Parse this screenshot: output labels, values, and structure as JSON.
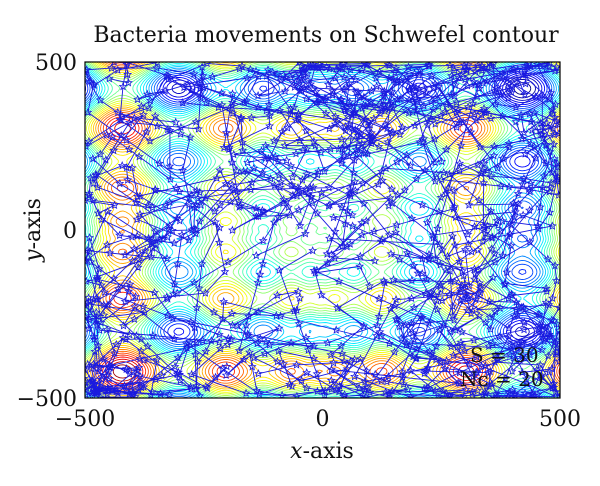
{
  "chart_data": {
    "type": "contour",
    "title": "Bacteria movements on Schwefel contour",
    "xlabel": {
      "var": "x",
      "rest": "-axis"
    },
    "ylabel": {
      "var": "y",
      "rest": "-axis"
    },
    "xlim": [
      -500,
      500
    ],
    "ylim": [
      -500,
      500
    ],
    "xticks": [
      -500,
      0,
      500
    ],
    "yticks": [
      -500,
      0,
      500
    ],
    "xtick_labels": [
      "−500",
      "0",
      "500"
    ],
    "ytick_labels": [
      "−500",
      "0",
      "500"
    ],
    "contour_function": "Schwefel",
    "contour_colormap": [
      "#00007f",
      "#0000ff",
      "#007fff",
      "#00ffff",
      "#7fff7f",
      "#ffff00",
      "#ff7f00",
      "#ff0000",
      "#7f0000"
    ],
    "trajectory_color": "#1a1adf",
    "marker": "star",
    "annotations": [
      "S = 30",
      "Nc = 20"
    ],
    "grid": false
  }
}
